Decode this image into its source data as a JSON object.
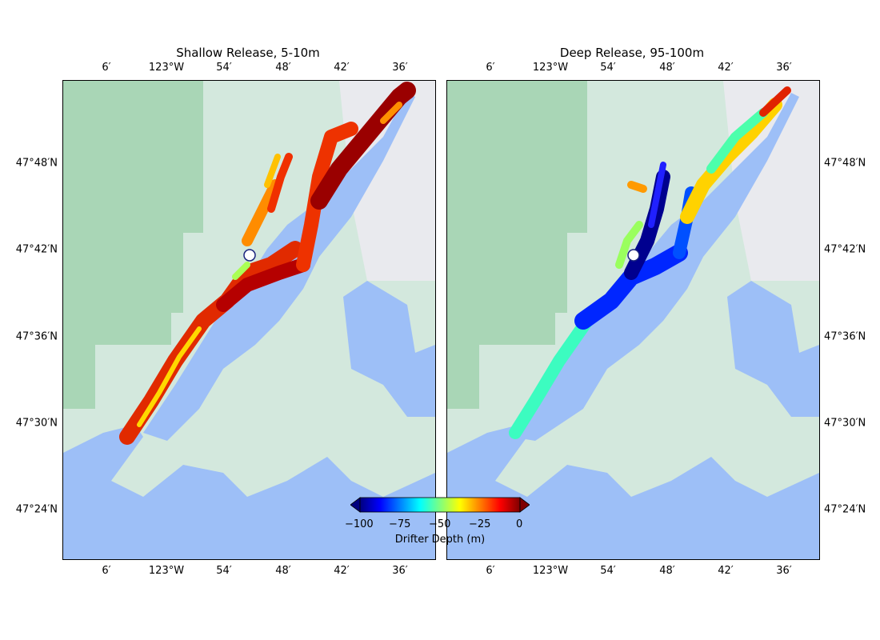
{
  "panels": [
    {
      "id": "shallow",
      "title": "Shallow Release, 5-10m"
    },
    {
      "id": "deep",
      "title": "Deep Release, 95-100m"
    }
  ],
  "x_ticks": [
    "6′",
    "123°W",
    "54′",
    "48′",
    "42′",
    "36′"
  ],
  "y_ticks": [
    "47°48′N",
    "47°42′N",
    "47°36′N",
    "47°30′N",
    "47°24′N"
  ],
  "colorbar": {
    "label": "Drifter Depth (m)",
    "ticks": [
      "−100",
      "−75",
      "−50",
      "−25",
      "0"
    ],
    "colormap": "jet",
    "range": [
      -100,
      0
    ]
  },
  "colors": {
    "land": "#d3e8dd",
    "forest": "#a9d6b6",
    "water": "#9dbff7",
    "urban": "#e9eaee",
    "marker_fill": "#ffffff",
    "marker_stroke": "#1a237e"
  },
  "release_point": {
    "lon": -122.885,
    "lat": 47.696
  }
}
